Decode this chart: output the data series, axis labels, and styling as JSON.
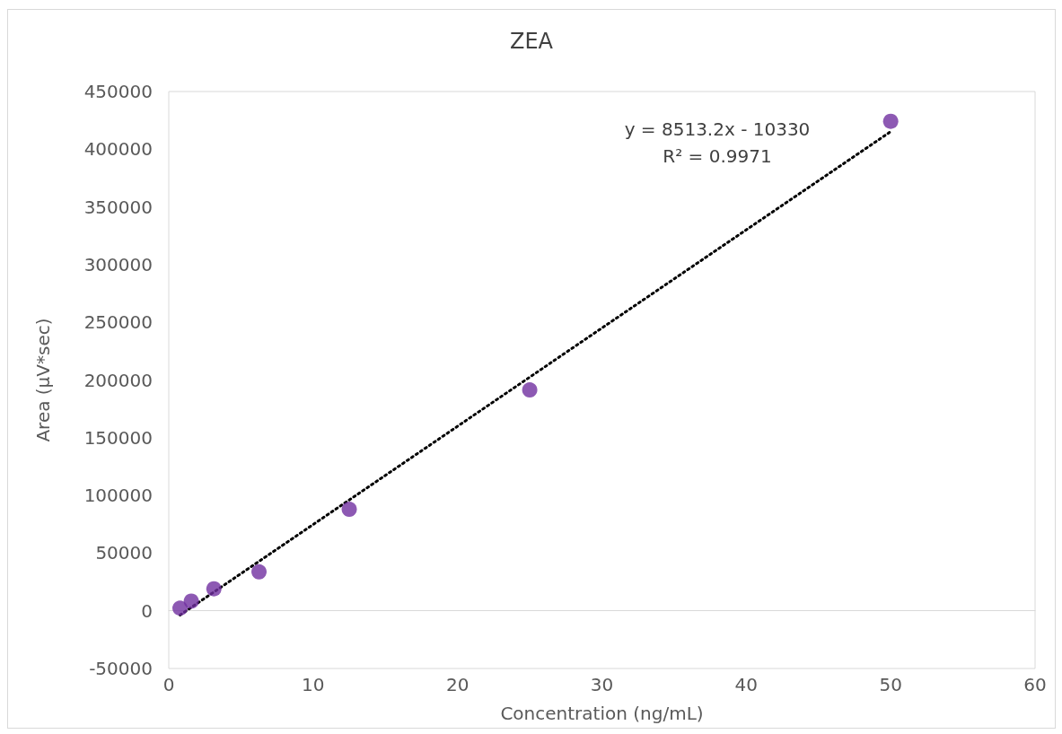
{
  "chart_data": {
    "type": "scatter",
    "title": "ZEA",
    "xlabel": "Concentration (ng/mL)",
    "ylabel": "Area (µV*sec)",
    "annotations": [
      "y = 8513.2x - 10330",
      "R² = 0.9971"
    ],
    "series": [
      {
        "color": "#7030a0",
        "marker": "circle",
        "x": [
          0.78,
          1.56,
          3.125,
          6.25,
          12.5,
          25,
          50
        ],
        "values": [
          2300,
          8400,
          19100,
          33700,
          88000,
          191400,
          424200
        ]
      },
      {
        "type": "line",
        "color": "#000000",
        "marker": "none",
        "line_style": "dotted",
        "x": [
          0.78,
          50
        ],
        "values": [
          -3700,
          415300
        ]
      }
    ],
    "xlim": [
      0,
      60
    ],
    "xticks": [
      0,
      10,
      20,
      30,
      40,
      50,
      60
    ],
    "ylim": [
      -50000,
      450000
    ],
    "yticks": [
      -50000,
      0,
      50000,
      100000,
      150000,
      200000,
      250000,
      300000,
      350000,
      400000,
      450000
    ]
  }
}
